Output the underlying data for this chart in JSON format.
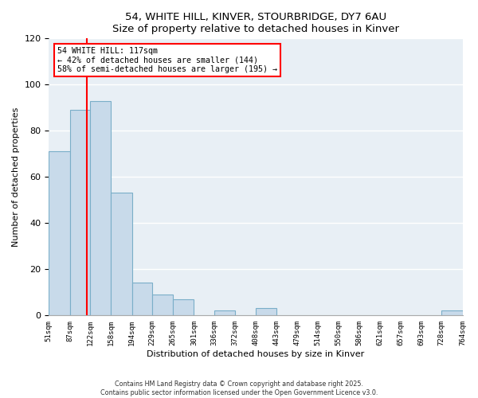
{
  "title": "54, WHITE HILL, KINVER, STOURBRIDGE, DY7 6AU",
  "subtitle": "Size of property relative to detached houses in Kinver",
  "xlabel": "Distribution of detached houses by size in Kinver",
  "ylabel": "Number of detached properties",
  "bin_edges": [
    51,
    87,
    122,
    158,
    194,
    229,
    265,
    301,
    336,
    372,
    408,
    443,
    479,
    514,
    550,
    586,
    621,
    657,
    693,
    728,
    764
  ],
  "bin_counts": [
    71,
    89,
    93,
    53,
    14,
    9,
    7,
    0,
    2,
    0,
    3,
    0,
    0,
    0,
    0,
    0,
    0,
    0,
    0,
    2
  ],
  "bar_color": "#c8daea",
  "bar_edge_color": "#7aaec8",
  "vline_x": 117,
  "vline_color": "red",
  "annotation_title": "54 WHITE HILL: 117sqm",
  "annotation_line1": "← 42% of detached houses are smaller (144)",
  "annotation_line2": "58% of semi-detached houses are larger (195) →",
  "annotation_box_color": "white",
  "annotation_box_edge_color": "red",
  "ylim": [
    0,
    120
  ],
  "yticks": [
    0,
    20,
    40,
    60,
    80,
    100,
    120
  ],
  "tick_labels": [
    "51sqm",
    "87sqm",
    "122sqm",
    "158sqm",
    "194sqm",
    "229sqm",
    "265sqm",
    "301sqm",
    "336sqm",
    "372sqm",
    "408sqm",
    "443sqm",
    "479sqm",
    "514sqm",
    "550sqm",
    "586sqm",
    "621sqm",
    "657sqm",
    "693sqm",
    "728sqm",
    "764sqm"
  ],
  "footer1": "Contains HM Land Registry data © Crown copyright and database right 2025.",
  "footer2": "Contains public sector information licensed under the Open Government Licence v3.0.",
  "bg_color": "#ffffff",
  "plot_bg_color": "#e8eff5",
  "grid_color": "#ffffff"
}
